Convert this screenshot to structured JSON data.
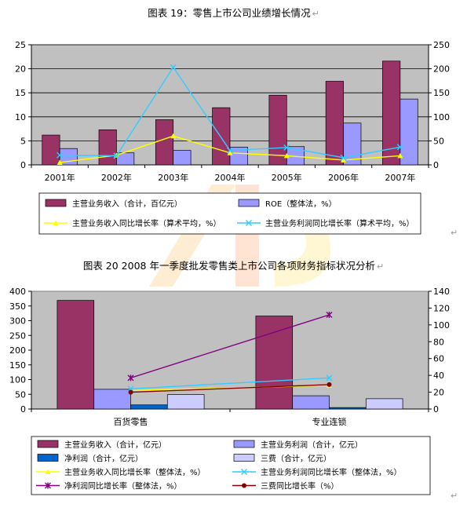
{
  "paragraph_mark": "↵",
  "chart_data": [
    {
      "type": "bar",
      "title": "图表 19：零售上市公司业绩增长情况",
      "categories": [
        "2001年",
        "2002年",
        "2003年",
        "2004年",
        "2005年",
        "2006年",
        "2007年"
      ],
      "y_left": {
        "min": 0,
        "max": 25,
        "ticks": [
          "0",
          "5",
          "10",
          "15",
          "20",
          "25"
        ]
      },
      "y_right": {
        "min": 0,
        "max": 250,
        "ticks": [
          "0",
          "50",
          "100",
          "150",
          "200",
          "250"
        ]
      },
      "grid": true,
      "legend_position": "bottom",
      "colors": {
        "plot_bg": "#c0c0c0",
        "revenue": "#993366",
        "roe": "#9999ff",
        "rev_growth": "#ffff00",
        "profit_growth": "#33ccff"
      },
      "series": [
        {
          "name": "主营业务收入（合计，百亿元）",
          "kind": "bar",
          "axis": "left",
          "values": [
            6.2,
            7.3,
            9.4,
            11.9,
            14.5,
            17.4,
            21.6
          ]
        },
        {
          "name": "ROE（整体法，%）",
          "kind": "bar",
          "axis": "left",
          "values": [
            3.4,
            2.5,
            3.0,
            3.7,
            3.8,
            8.7,
            13.7
          ]
        },
        {
          "name": "主营业务收入同比增长率（算术平均，%）",
          "kind": "line",
          "axis": "right",
          "values": [
            5,
            20,
            60,
            25,
            19,
            10,
            19
          ]
        },
        {
          "name": "主营业务利润同比增长率（算术平均，%）",
          "kind": "line",
          "axis": "right",
          "values": [
            20,
            19,
            203,
            30,
            36,
            15,
            37
          ]
        }
      ]
    },
    {
      "type": "bar",
      "title": "图表 20 2008 年一季度批发零售类上市公司各项财务指标状况分析",
      "categories": [
        "百货零售",
        "专业连锁"
      ],
      "y_left": {
        "min": 0,
        "max": 400,
        "ticks": [
          "0",
          "50",
          "100",
          "150",
          "200",
          "250",
          "300",
          "350",
          "400"
        ]
      },
      "y_right": {
        "min": 0,
        "max": 140,
        "ticks": [
          "0",
          "20",
          "40",
          "60",
          "80",
          "100",
          "120",
          "140"
        ]
      },
      "grid": false,
      "legend_position": "bottom",
      "colors": {
        "plot_bg": "#c0c0c0",
        "revenue": "#993366",
        "profit": "#9999ff",
        "net_profit": "#0066cc",
        "three_fees": "#ccccff",
        "rev_growth": "#ffff00",
        "profit_growth": "#33ccff",
        "net_growth": "#800080",
        "fee_growth": "#800000"
      },
      "series": [
        {
          "name": "主营业务收入（合计，亿元）",
          "kind": "bar",
          "axis": "left",
          "values": [
            369,
            316
          ]
        },
        {
          "name": "主营业务利润（合计，亿元）",
          "kind": "bar",
          "axis": "left",
          "values": [
            67,
            45
          ]
        },
        {
          "name": "净利润（合计，亿元）",
          "kind": "bar",
          "axis": "left",
          "values": [
            14,
            5
          ]
        },
        {
          "name": "三费（合计，亿元）",
          "kind": "bar",
          "axis": "left",
          "values": [
            49,
            35
          ]
        },
        {
          "name": "主营业务收入同比增长率（整体法，%）",
          "kind": "line",
          "axis": "right",
          "values": [
            22,
            28
          ]
        },
        {
          "name": "主营业务利润同比增长率（整体法，%）",
          "kind": "line",
          "axis": "right",
          "values": [
            24,
            37
          ]
        },
        {
          "name": "净利润同比增长率（整体法，%）",
          "kind": "line",
          "axis": "right",
          "values": [
            37,
            112
          ]
        },
        {
          "name": "三费同比增长率（%）",
          "kind": "line",
          "axis": "right",
          "values": [
            20,
            29
          ]
        }
      ]
    }
  ]
}
